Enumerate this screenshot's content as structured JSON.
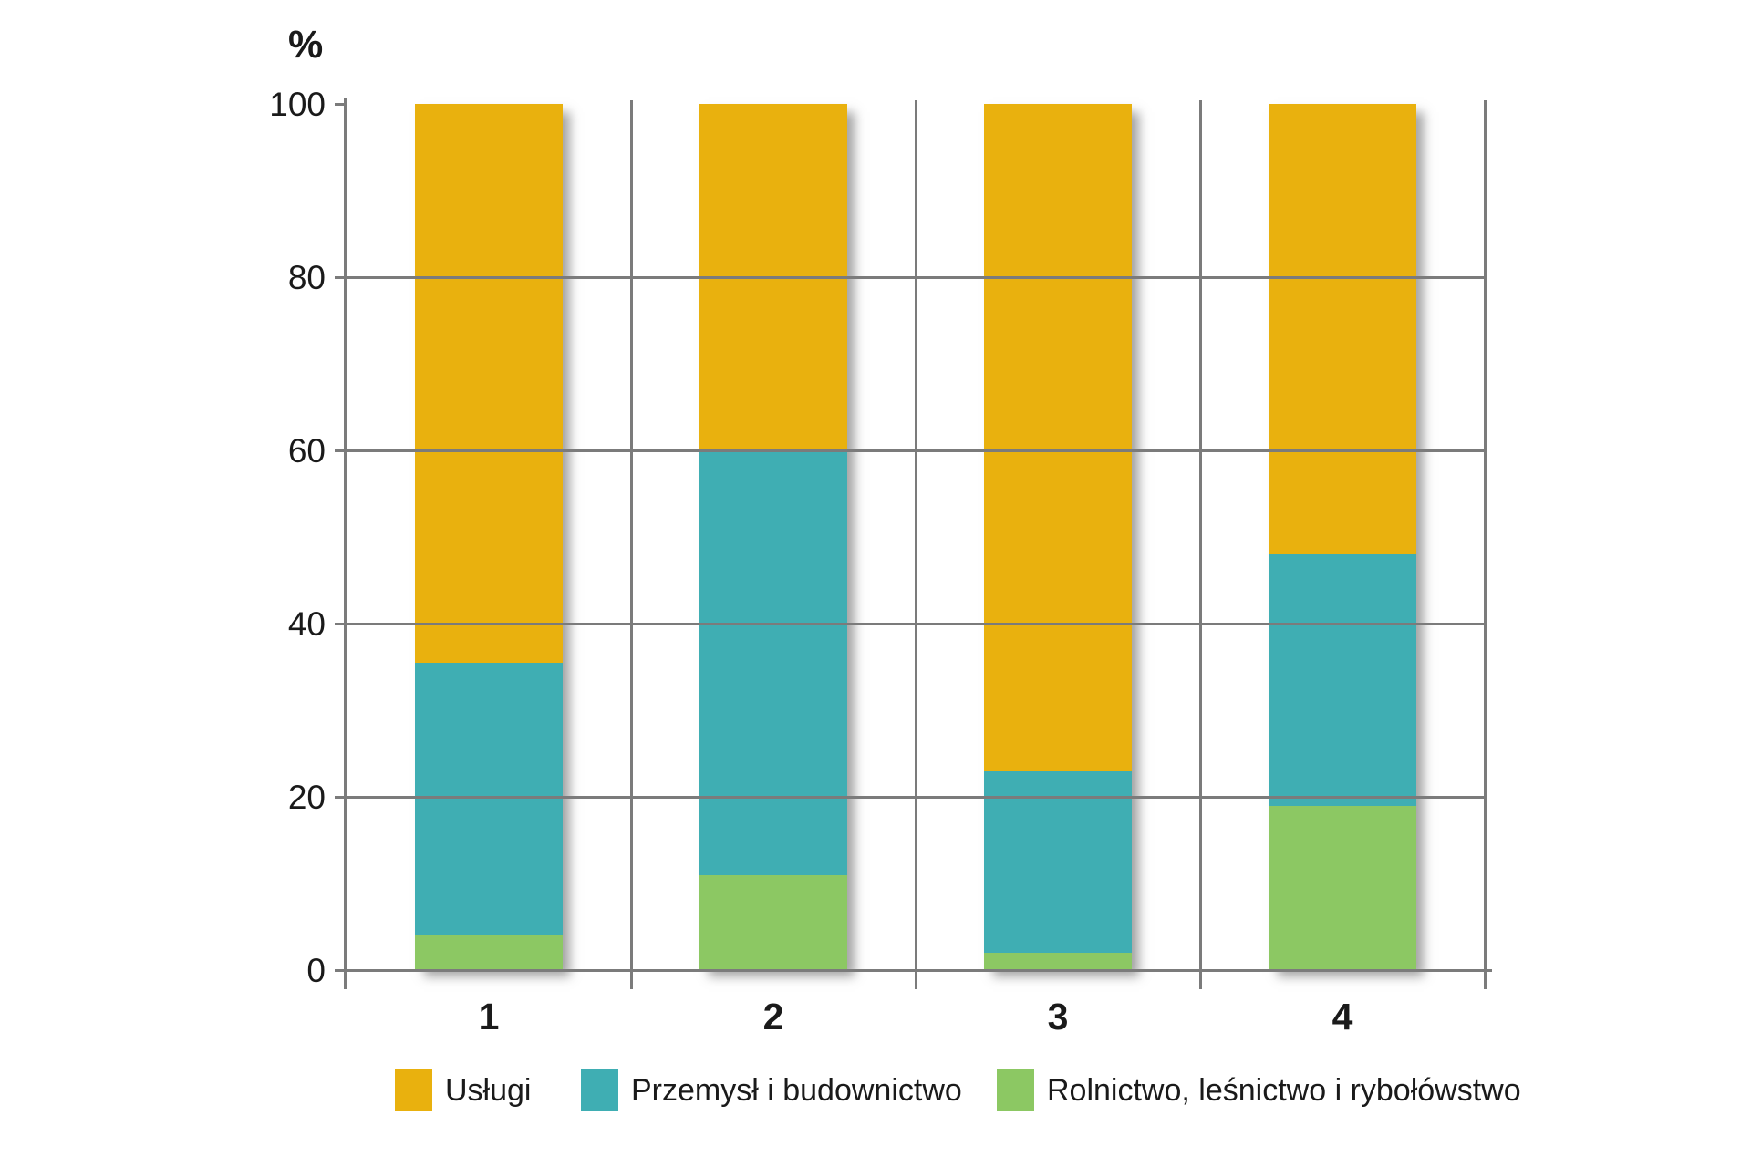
{
  "chart_data": {
    "type": "bar",
    "subtype": "stacked-percentage",
    "title": "",
    "xlabel": "",
    "ylabel": "%",
    "ylim": [
      0,
      100
    ],
    "yticks": [
      0,
      20,
      40,
      60,
      80,
      100
    ],
    "grid": "horizontal lines at 20/40/60/80 plus vertical category separators",
    "legend_position": "bottom",
    "categories": [
      "1",
      "2",
      "3",
      "4"
    ],
    "series": [
      {
        "name": "Usługi",
        "color": "#E9B10E",
        "values": [
          64.5,
          40,
          77,
          52
        ]
      },
      {
        "name": "Przemysł i budownictwo",
        "color": "#3FAEB3",
        "values": [
          31.5,
          49,
          21,
          29
        ]
      },
      {
        "name": "Rolnictwo, leśnictwo i rybołówstwo",
        "color": "#8CC863",
        "values": [
          4,
          11,
          2,
          19
        ]
      }
    ]
  },
  "colors": {
    "grid": "#7b7b7b",
    "text": "#1a1a1a",
    "background": "#ffffff"
  }
}
